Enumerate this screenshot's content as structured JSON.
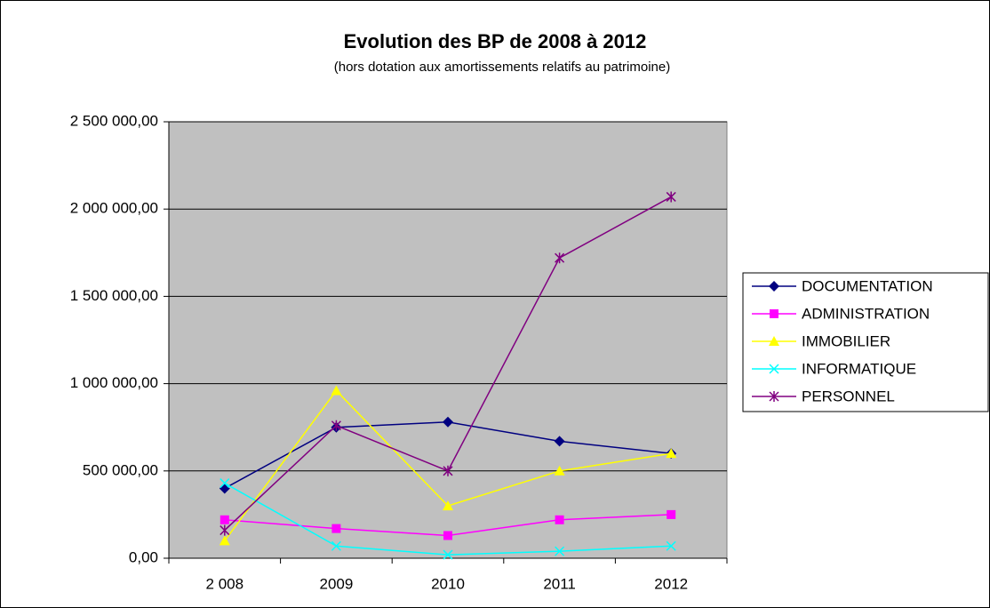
{
  "chart_data": {
    "type": "line",
    "title": "Evolution des BP de 2008 à 2012",
    "subtitle": "(hors dotation aux amortissements relatifs au patrimoine)",
    "categories": [
      "2 008",
      "2009",
      "2010",
      "2011",
      "2012"
    ],
    "series": [
      {
        "name": "DOCUMENTATION",
        "color": "#000080",
        "marker": "diamond",
        "values": [
          400000,
          750000,
          780000,
          670000,
          600000
        ]
      },
      {
        "name": "ADMINISTRATION",
        "color": "#ff00ff",
        "marker": "square",
        "values": [
          220000,
          170000,
          130000,
          220000,
          250000
        ]
      },
      {
        "name": "IMMOBILIER",
        "color": "#ffff00",
        "marker": "triangle",
        "values": [
          100000,
          960000,
          300000,
          500000,
          600000
        ]
      },
      {
        "name": "INFORMATIQUE",
        "color": "#00ffff",
        "marker": "x",
        "values": [
          430000,
          70000,
          20000,
          40000,
          70000
        ]
      },
      {
        "name": "PERSONNEL",
        "color": "#800080",
        "marker": "star",
        "values": [
          160000,
          760000,
          500000,
          1720000,
          2070000
        ]
      }
    ],
    "ylim": [
      0,
      2500000
    ],
    "yticks": [
      {
        "value": 0,
        "label": "0,00"
      },
      {
        "value": 500000,
        "label": "500 000,00"
      },
      {
        "value": 1000000,
        "label": "1 000 000,00"
      },
      {
        "value": 1500000,
        "label": "1 500 000,00"
      },
      {
        "value": 2000000,
        "label": "2 000 000,00"
      },
      {
        "value": 2500000,
        "label": "2 500 000,00"
      }
    ],
    "grid": true,
    "legend": "right"
  }
}
